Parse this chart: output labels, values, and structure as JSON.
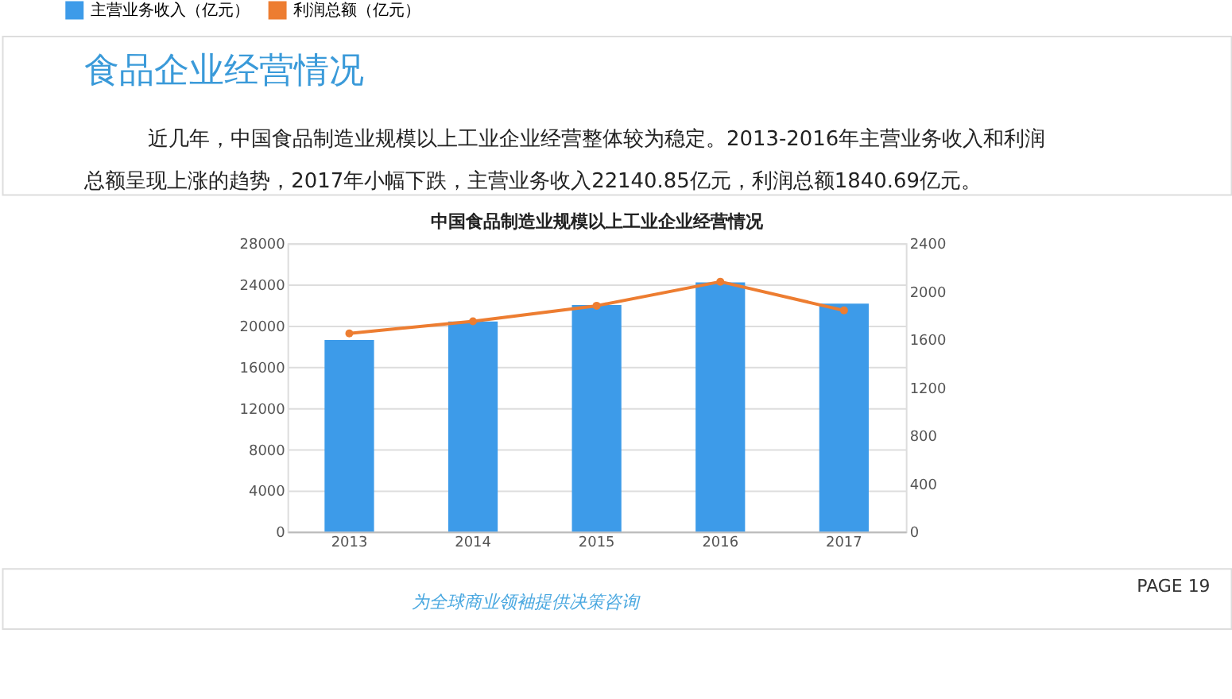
{
  "chart_data": {
    "type": "bar",
    "title": "中国食品制造业规模以上工业企业经营情况",
    "categories": [
      "2013",
      "2014",
      "2015",
      "2016",
      "2017"
    ],
    "series": [
      {
        "name": "主营业务收入（亿元）",
        "color": "#3d9be9",
        "values": [
          18600,
          20400,
          22000,
          24200,
          22140.85
        ]
      },
      {
        "name": "利润总额（亿元）",
        "type": "line",
        "axis": "y2",
        "marker": "circle",
        "color": "#ed7d31",
        "values": [
          1650,
          1750,
          1880,
          2080,
          1840.69
        ]
      }
    ],
    "ylim": [
      0,
      28000
    ],
    "yticks": [
      0,
      4000,
      8000,
      12000,
      16000,
      20000,
      24000,
      28000
    ],
    "y2lim": [
      0,
      2400
    ],
    "y2ticks": [
      0,
      400,
      800,
      1200,
      1600,
      2000,
      2400
    ],
    "grid": "y",
    "legend": "top",
    "annotations": [
      "食品企业经营情况",
      "近几年，中国食品制造业规模以上工业企业经营整体较为稳定。2013-2016年主营业务收入和利润总额呈现上涨的趋势，2017年小幅下跌，主营业务收入22140.85亿元，利润总额1840.69亿元。",
      "为全球商业领袖提供决策咨询",
      "PAGE 19"
    ]
  }
}
